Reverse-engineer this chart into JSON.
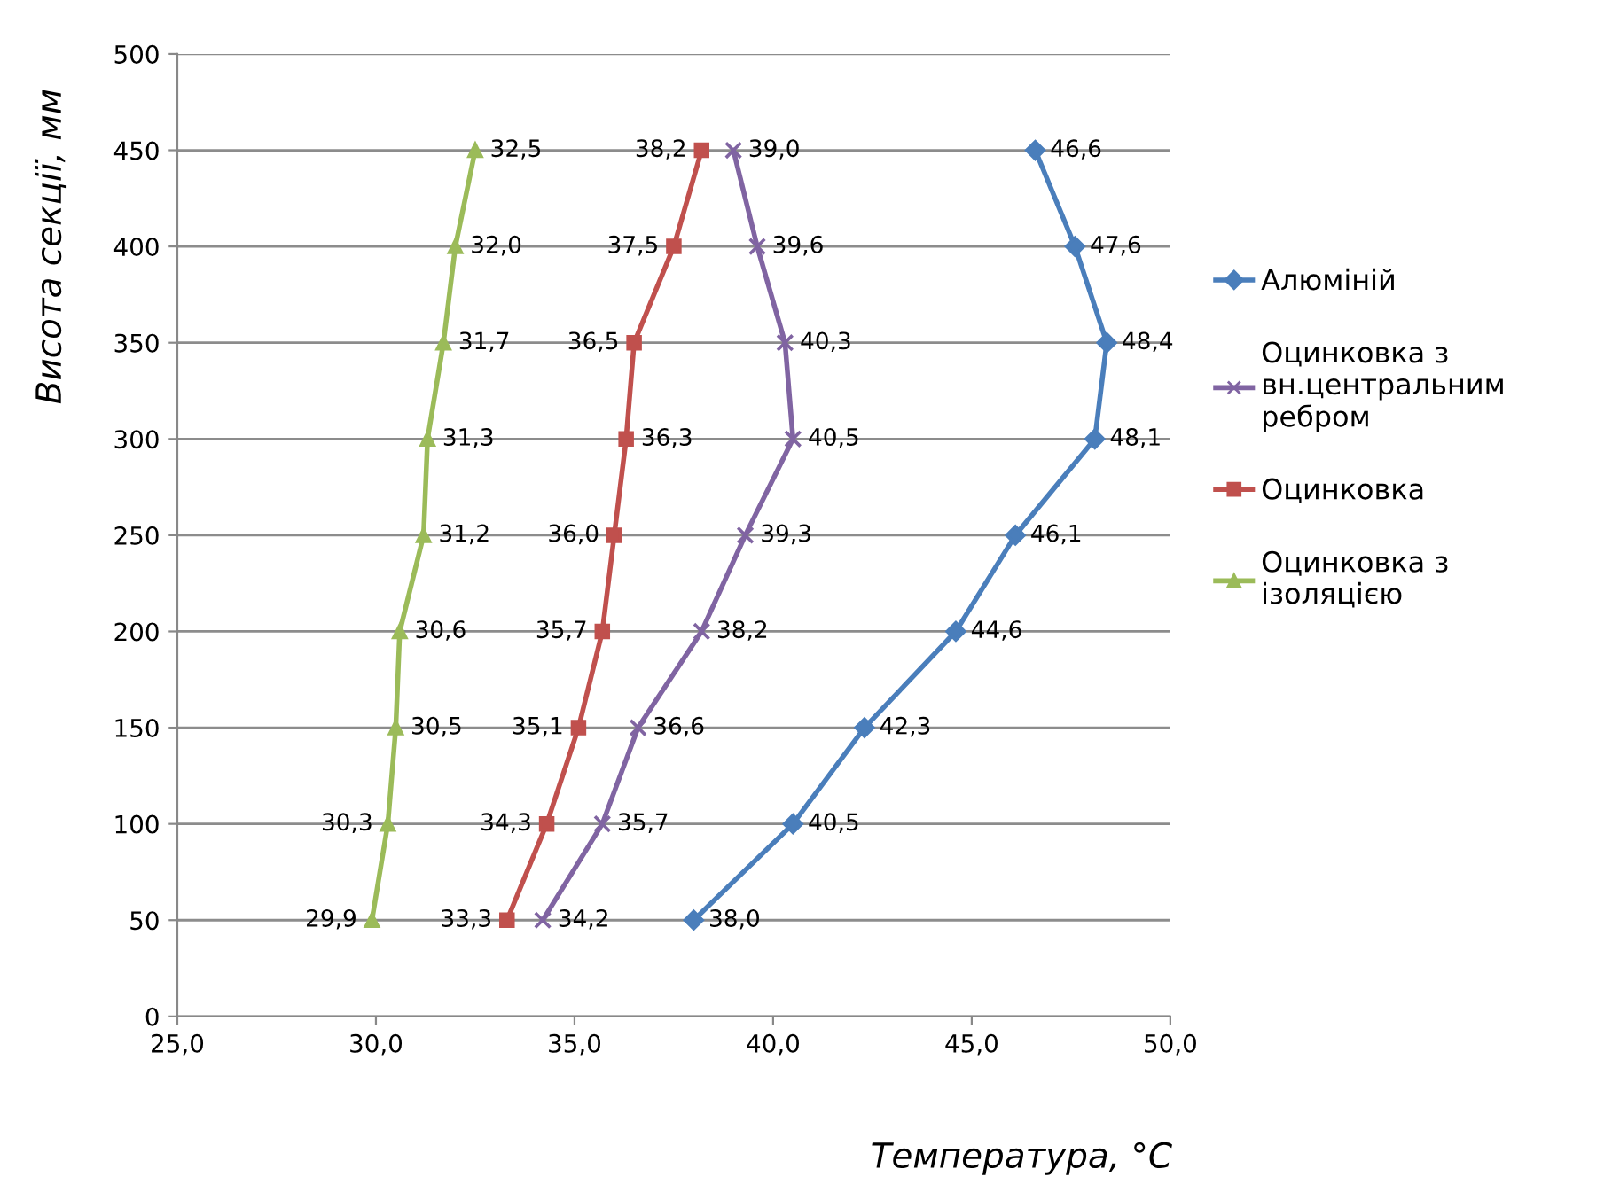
{
  "chart_data": {
    "type": "line",
    "xlabel": "Температура, °C",
    "ylabel": "Висота секції, мм",
    "xlim": [
      25,
      50
    ],
    "xticks": [
      {
        "value": 25,
        "label": "25,0"
      },
      {
        "value": 30,
        "label": "30,0"
      },
      {
        "value": 35,
        "label": "35,0"
      },
      {
        "value": 40,
        "label": "40,0"
      },
      {
        "value": 45,
        "label": "45,0"
      },
      {
        "value": 50,
        "label": "50,0"
      }
    ],
    "ylim": [
      0,
      500
    ],
    "yticks": [
      0,
      50,
      100,
      150,
      200,
      250,
      300,
      350,
      400,
      450,
      500
    ],
    "grid": "y",
    "legend": "right",
    "line_style": "solid",
    "series": [
      {
        "name": "Алюміній",
        "color": "#4a7ebb",
        "marker": "diamond",
        "x": [
          38.0,
          40.5,
          42.3,
          44.6,
          46.1,
          48.1,
          48.4,
          47.6,
          46.6
        ],
        "values": [
          50,
          100,
          150,
          200,
          250,
          300,
          350,
          400,
          450
        ]
      },
      {
        "name": "Оцинковка з вн.центральним ребром",
        "color": "#8064a2",
        "marker": "cross",
        "x": [
          34.2,
          35.7,
          36.6,
          38.2,
          39.3,
          40.5,
          40.3,
          39.6,
          39.0
        ],
        "values": [
          50,
          100,
          150,
          200,
          250,
          300,
          350,
          400,
          450
        ]
      },
      {
        "name": "Оцинковка",
        "color": "#c0504d",
        "marker": "square",
        "x": [
          33.3,
          34.3,
          35.1,
          35.7,
          36.0,
          36.3,
          36.5,
          37.5,
          38.2
        ],
        "values": [
          50,
          100,
          150,
          200,
          250,
          300,
          350,
          400,
          450
        ]
      },
      {
        "name": "Оцинковка з ізоляцією",
        "color": "#9bbb59",
        "marker": "triangle",
        "x": [
          29.9,
          30.3,
          30.5,
          30.6,
          31.2,
          31.3,
          31.7,
          32.0,
          32.5
        ],
        "values": [
          50,
          100,
          150,
          200,
          250,
          300,
          350,
          400,
          450
        ]
      }
    ],
    "annotations": [
      {
        "text": "38,0",
        "x": 38.0,
        "y": 50
      },
      {
        "text": "40,5",
        "x": 40.5,
        "y": 100
      },
      {
        "text": "42,3",
        "x": 42.3,
        "y": 150
      },
      {
        "text": "44,6",
        "x": 44.6,
        "y": 200
      },
      {
        "text": "46,1",
        "x": 46.1,
        "y": 250
      },
      {
        "text": "48,1",
        "x": 48.1,
        "y": 300
      },
      {
        "text": "48,4",
        "x": 48.4,
        "y": 350
      },
      {
        "text": "47,6",
        "x": 47.6,
        "y": 400
      },
      {
        "text": "46,6",
        "x": 46.6,
        "y": 450
      },
      {
        "text": "34,2",
        "x": 34.2,
        "y": 50
      },
      {
        "text": "35,7",
        "x": 35.7,
        "y": 100
      },
      {
        "text": "36,6",
        "x": 36.6,
        "y": 150
      },
      {
        "text": "38,2",
        "x": 38.2,
        "y": 200
      },
      {
        "text": "39,3",
        "x": 39.3,
        "y": 250
      },
      {
        "text": "40,5",
        "x": 40.5,
        "y": 300
      },
      {
        "text": "40,3",
        "x": 40.3,
        "y": 350
      },
      {
        "text": "39,6",
        "x": 39.6,
        "y": 400
      },
      {
        "text": "39,0",
        "x": 39.0,
        "y": 450
      },
      {
        "text": "33,3",
        "x": 33.3,
        "y": 50
      },
      {
        "text": "34,3",
        "x": 34.3,
        "y": 100
      },
      {
        "text": "35,1",
        "x": 35.1,
        "y": 150
      },
      {
        "text": "35,7",
        "x": 35.7,
        "y": 200
      },
      {
        "text": "36,0",
        "x": 36.0,
        "y": 250
      },
      {
        "text": "36,3",
        "x": 36.3,
        "y": 300
      },
      {
        "text": "36,5",
        "x": 36.5,
        "y": 350
      },
      {
        "text": "37,5",
        "x": 37.5,
        "y": 400
      },
      {
        "text": "38,2",
        "x": 38.2,
        "y": 450
      },
      {
        "text": "29,9",
        "x": 29.9,
        "y": 50
      },
      {
        "text": "30,3",
        "x": 30.3,
        "y": 100
      },
      {
        "text": "30,5",
        "x": 30.5,
        "y": 150
      },
      {
        "text": "30,6",
        "x": 30.6,
        "y": 200
      },
      {
        "text": "31,2",
        "x": 31.2,
        "y": 250
      },
      {
        "text": "31,3",
        "x": 31.3,
        "y": 300
      },
      {
        "text": "31,7",
        "x": 31.7,
        "y": 350
      },
      {
        "text": "32,0",
        "x": 32.0,
        "y": 400
      },
      {
        "text": "32,5",
        "x": 32.5,
        "y": 450
      }
    ]
  }
}
